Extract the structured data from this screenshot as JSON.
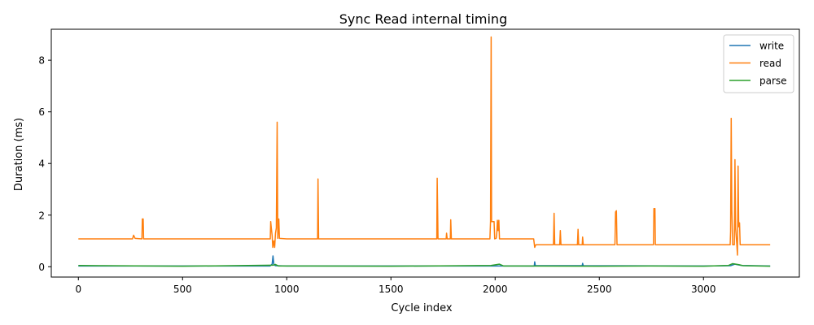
{
  "chart_data": {
    "type": "line",
    "title": "Sync Read internal timing",
    "xlabel": "Cycle index",
    "ylabel": "Duration (ms)",
    "xlim": [
      -130,
      3460
    ],
    "ylim": [
      -0.4,
      9.2
    ],
    "xticks": [
      0,
      500,
      1000,
      1500,
      2000,
      2500,
      3000
    ],
    "yticks": [
      0,
      2,
      4,
      6,
      8
    ],
    "grid": false,
    "legend_position": "top-right",
    "series": [
      {
        "name": "write",
        "color": "#1f77b4",
        "points": [
          [
            0,
            0.03
          ],
          [
            500,
            0.03
          ],
          [
            920,
            0.03
          ],
          [
            930,
            0.1
          ],
          [
            934,
            0.42
          ],
          [
            938,
            0.1
          ],
          [
            945,
            0.04
          ],
          [
            1000,
            0.03
          ],
          [
            1500,
            0.03
          ],
          [
            2000,
            0.03
          ],
          [
            2188,
            0.03
          ],
          [
            2190,
            0.19
          ],
          [
            2193,
            0.04
          ],
          [
            2418,
            0.04
          ],
          [
            2420,
            0.13
          ],
          [
            2423,
            0.04
          ],
          [
            3000,
            0.03
          ],
          [
            3130,
            0.04
          ],
          [
            3150,
            0.1
          ],
          [
            3180,
            0.05
          ],
          [
            3320,
            0.03
          ]
        ]
      },
      {
        "name": "read",
        "color": "#ff7f0e",
        "points": [
          [
            0,
            1.08
          ],
          [
            260,
            1.08
          ],
          [
            265,
            1.22
          ],
          [
            272,
            1.1
          ],
          [
            305,
            1.08
          ],
          [
            307,
            1.85
          ],
          [
            311,
            1.85
          ],
          [
            313,
            1.08
          ],
          [
            500,
            1.08
          ],
          [
            921,
            1.08
          ],
          [
            923,
            1.75
          ],
          [
            926,
            1.5
          ],
          [
            930,
            1.2
          ],
          [
            933,
            0.75
          ],
          [
            938,
            1.0
          ],
          [
            942,
            0.75
          ],
          [
            946,
            1.3
          ],
          [
            950,
            1.5
          ],
          [
            954,
            5.6
          ],
          [
            957,
            1.1
          ],
          [
            962,
            1.85
          ],
          [
            965,
            1.1
          ],
          [
            1000,
            1.08
          ],
          [
            1148,
            1.08
          ],
          [
            1150,
            3.4
          ],
          [
            1153,
            1.08
          ],
          [
            1500,
            1.08
          ],
          [
            1720,
            1.08
          ],
          [
            1722,
            3.43
          ],
          [
            1726,
            1.08
          ],
          [
            1765,
            1.08
          ],
          [
            1767,
            1.3
          ],
          [
            1770,
            1.08
          ],
          [
            1785,
            1.08
          ],
          [
            1787,
            1.82
          ],
          [
            1790,
            1.08
          ],
          [
            1975,
            1.08
          ],
          [
            1978,
            1.75
          ],
          [
            1981,
            8.9
          ],
          [
            1983,
            1.75
          ],
          [
            1995,
            1.75
          ],
          [
            1998,
            1.08
          ],
          [
            2005,
            1.1
          ],
          [
            2008,
            1.3
          ],
          [
            2011,
            1.8
          ],
          [
            2014,
            1.4
          ],
          [
            2018,
            1.8
          ],
          [
            2021,
            1.08
          ],
          [
            2185,
            1.08
          ],
          [
            2190,
            0.75
          ],
          [
            2195,
            0.85
          ],
          [
            2280,
            0.85
          ],
          [
            2283,
            2.07
          ],
          [
            2286,
            0.85
          ],
          [
            2310,
            0.85
          ],
          [
            2313,
            1.4
          ],
          [
            2316,
            0.85
          ],
          [
            2395,
            0.85
          ],
          [
            2398,
            1.45
          ],
          [
            2401,
            0.85
          ],
          [
            2418,
            0.85
          ],
          [
            2420,
            1.15
          ],
          [
            2423,
            0.85
          ],
          [
            2500,
            0.85
          ],
          [
            2575,
            0.85
          ],
          [
            2578,
            2.12
          ],
          [
            2582,
            2.17
          ],
          [
            2585,
            0.85
          ],
          [
            2760,
            0.85
          ],
          [
            2762,
            2.25
          ],
          [
            2767,
            2.25
          ],
          [
            2769,
            0.85
          ],
          [
            3000,
            0.85
          ],
          [
            3128,
            0.85
          ],
          [
            3130,
            1.35
          ],
          [
            3133,
            5.75
          ],
          [
            3136,
            2.2
          ],
          [
            3140,
            0.85
          ],
          [
            3148,
            0.85
          ],
          [
            3151,
            4.15
          ],
          [
            3154,
            1.5
          ],
          [
            3160,
            0.85
          ],
          [
            3163,
            0.45
          ],
          [
            3166,
            3.9
          ],
          [
            3169,
            1.55
          ],
          [
            3173,
            1.7
          ],
          [
            3176,
            0.85
          ],
          [
            3320,
            0.85
          ]
        ]
      },
      {
        "name": "parse",
        "color": "#2ca02c",
        "points": [
          [
            0,
            0.05
          ],
          [
            100,
            0.04
          ],
          [
            500,
            0.02
          ],
          [
            935,
            0.06
          ],
          [
            945,
            0.09
          ],
          [
            960,
            0.03
          ],
          [
            1500,
            0.02
          ],
          [
            1980,
            0.05
          ],
          [
            2020,
            0.1
          ],
          [
            2040,
            0.03
          ],
          [
            2500,
            0.02
          ],
          [
            2750,
            0.03
          ],
          [
            3000,
            0.02
          ],
          [
            3120,
            0.05
          ],
          [
            3140,
            0.12
          ],
          [
            3170,
            0.08
          ],
          [
            3190,
            0.04
          ],
          [
            3320,
            0.02
          ]
        ]
      }
    ]
  }
}
